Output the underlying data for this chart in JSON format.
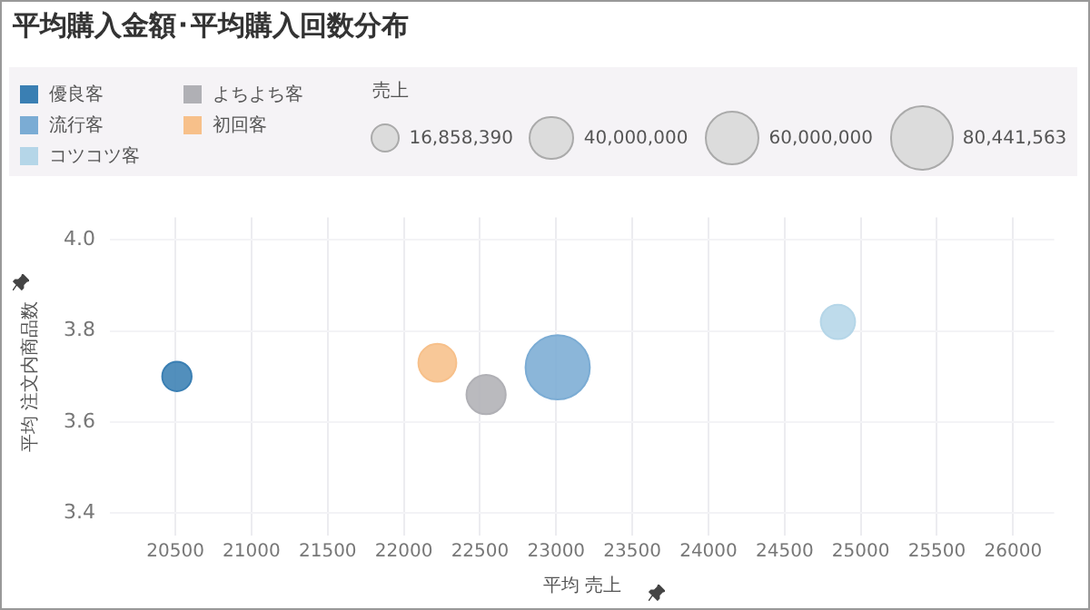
{
  "chart_data": {
    "type": "bubble",
    "title": "平均購入金額･平均購入回数分布",
    "xlabel": "平均 売上",
    "ylabel": "平均 注文内商品数",
    "legend_title": "売上",
    "legend": "top left",
    "grid": true,
    "xlim": [
      20070,
      26270
    ],
    "ylim": [
      3.35,
      4.05
    ],
    "xticks": [
      20500,
      21000,
      21500,
      22000,
      22500,
      23000,
      23500,
      24000,
      24500,
      25000,
      25500,
      26000
    ],
    "yticks": [
      {
        "value": 3.4,
        "label": "3.4"
      },
      {
        "value": 3.6,
        "label": "3.6"
      },
      {
        "value": 3.8,
        "label": "3.8"
      },
      {
        "value": 4.0,
        "label": "4.0"
      }
    ],
    "size_legend": [
      {
        "value": 16858390,
        "label": "16,858,390"
      },
      {
        "value": 40000000,
        "label": "40,000,000"
      },
      {
        "value": 60000000,
        "label": "60,000,000"
      },
      {
        "value": 80441563,
        "label": "80,441,563"
      }
    ],
    "series": [
      {
        "name": "優良客",
        "color": "#3a7fb3",
        "x": [
          20510
        ],
        "values": [
          3.7
        ],
        "sizes": [
          16858390
        ]
      },
      {
        "name": "流行客",
        "color": "#7bacd4",
        "x": [
          23010
        ],
        "values": [
          3.72
        ],
        "sizes": [
          80441563
        ]
      },
      {
        "name": "コツコツ客",
        "color": "#b5d6e8",
        "x": [
          24850
        ],
        "values": [
          3.82
        ],
        "sizes": [
          23000000
        ]
      },
      {
        "name": "よちよち客",
        "color": "#b0b0b5",
        "x": [
          22540
        ],
        "values": [
          3.66
        ],
        "sizes": [
          30000000
        ]
      },
      {
        "name": "初回客",
        "color": "#f7c08a",
        "x": [
          22220
        ],
        "values": [
          3.73
        ],
        "sizes": [
          28000000
        ]
      }
    ]
  }
}
